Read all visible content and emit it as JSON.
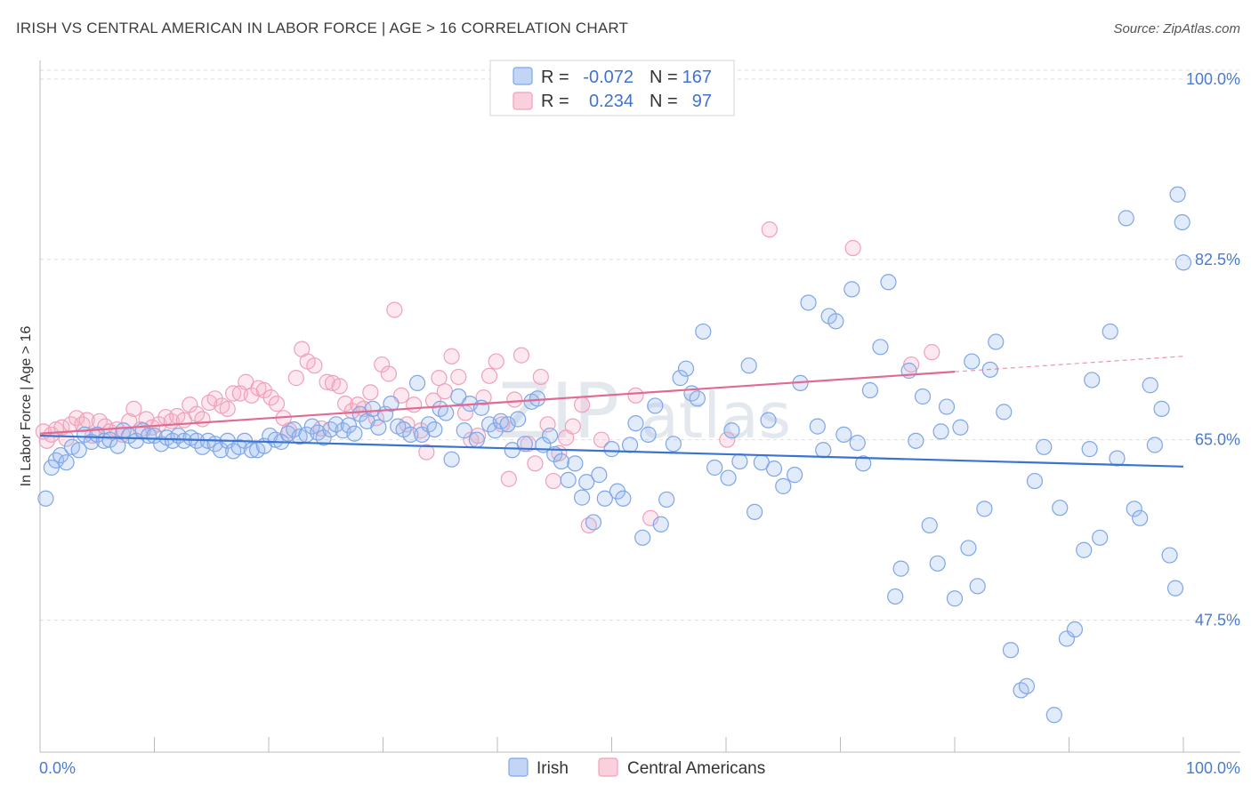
{
  "header": {
    "title": "IRISH VS CENTRAL AMERICAN IN LABOR FORCE | AGE > 16 CORRELATION CHART",
    "source": "Source: ZipAtlas.com"
  },
  "watermark": {
    "zip": "ZIP",
    "atlas": "atlas"
  },
  "legend": {
    "rows": [
      {
        "r_label": "R =",
        "r_value": "-0.072",
        "n_label": "N =",
        "n_value": "167",
        "color": "#7ea6e8"
      },
      {
        "r_label": "R =",
        "r_value": "0.234",
        "n_label": "N =",
        "n_value": "97",
        "color": "#f0a0ba"
      }
    ]
  },
  "bottom_legend": {
    "items": [
      {
        "label": "Irish",
        "color": "#7ea6e8"
      },
      {
        "label": "Central Americans",
        "color": "#f0a0ba"
      }
    ]
  },
  "chart_data": {
    "type": "scatter",
    "title": "IRISH VS CENTRAL AMERICAN IN LABOR FORCE | AGE > 16 CORRELATION CHART",
    "xlabel": "",
    "ylabel": "In Labor Force | Age > 16",
    "x_tick_labels": [
      "0.0%",
      "100.0%"
    ],
    "y_tick_labels": [
      "100.0%",
      "82.5%",
      "65.0%",
      "47.5%"
    ],
    "y_ticks": [
      100.0,
      82.5,
      65.0,
      47.5
    ],
    "xlim": [
      0,
      100
    ],
    "ylim": [
      34.7,
      101.8
    ],
    "grid": true,
    "legend_position": "top-center",
    "series": [
      {
        "name": "Irish",
        "color": "#7ea6e8",
        "line_color": "#3a74d0",
        "trend": {
          "x1": 0,
          "y1": 65.4,
          "x2": 100,
          "y2": 62.4
        },
        "points": [
          [
            0.5,
            59.3
          ],
          [
            1.0,
            62.3
          ],
          [
            1.4,
            63.0
          ],
          [
            1.8,
            63.5
          ],
          [
            2.3,
            62.8
          ],
          [
            2.8,
            64.3
          ],
          [
            3.4,
            64.0
          ],
          [
            3.9,
            65.5
          ],
          [
            4.5,
            64.8
          ],
          [
            5.0,
            65.5
          ],
          [
            5.6,
            64.9
          ],
          [
            6.1,
            65.0
          ],
          [
            6.8,
            64.4
          ],
          [
            7.3,
            65.9
          ],
          [
            7.8,
            65.4
          ],
          [
            8.4,
            64.9
          ],
          [
            9.0,
            65.9
          ],
          [
            9.5,
            65.4
          ],
          [
            10.0,
            65.4
          ],
          [
            10.6,
            64.6
          ],
          [
            11.1,
            65.2
          ],
          [
            11.6,
            64.9
          ],
          [
            12.1,
            65.4
          ],
          [
            12.6,
            64.9
          ],
          [
            13.2,
            65.2
          ],
          [
            13.7,
            64.9
          ],
          [
            14.2,
            64.3
          ],
          [
            14.7,
            64.9
          ],
          [
            15.3,
            64.6
          ],
          [
            15.8,
            64.0
          ],
          [
            16.4,
            64.9
          ],
          [
            16.9,
            63.9
          ],
          [
            17.4,
            64.3
          ],
          [
            17.9,
            64.9
          ],
          [
            18.5,
            64.0
          ],
          [
            19.0,
            64.0
          ],
          [
            19.6,
            64.4
          ],
          [
            20.1,
            65.4
          ],
          [
            20.6,
            65.0
          ],
          [
            21.1,
            64.8
          ],
          [
            21.7,
            65.6
          ],
          [
            22.2,
            66.0
          ],
          [
            22.7,
            65.3
          ],
          [
            23.3,
            65.5
          ],
          [
            23.8,
            66.3
          ],
          [
            24.3,
            65.7
          ],
          [
            24.8,
            65.2
          ],
          [
            25.4,
            66.0
          ],
          [
            25.9,
            66.5
          ],
          [
            26.5,
            65.9
          ],
          [
            27.0,
            66.4
          ],
          [
            27.5,
            65.6
          ],
          [
            28.0,
            67.5
          ],
          [
            28.6,
            66.8
          ],
          [
            29.1,
            68.0
          ],
          [
            29.6,
            66.2
          ],
          [
            30.2,
            67.5
          ],
          [
            30.7,
            68.5
          ],
          [
            31.3,
            66.3
          ],
          [
            31.8,
            66.0
          ],
          [
            32.4,
            65.5
          ],
          [
            33.0,
            70.5
          ],
          [
            33.4,
            65.5
          ],
          [
            34.0,
            66.5
          ],
          [
            34.5,
            66.0
          ],
          [
            35.0,
            68.0
          ],
          [
            35.5,
            67.6
          ],
          [
            36.0,
            63.1
          ],
          [
            36.6,
            69.2
          ],
          [
            37.1,
            65.9
          ],
          [
            37.6,
            68.5
          ],
          [
            38.2,
            65.0
          ],
          [
            38.6,
            68.1
          ],
          [
            39.3,
            66.5
          ],
          [
            39.8,
            65.9
          ],
          [
            40.3,
            66.8
          ],
          [
            40.9,
            66.5
          ],
          [
            41.3,
            64.0
          ],
          [
            41.8,
            67.0
          ],
          [
            42.4,
            64.6
          ],
          [
            43.0,
            68.7
          ],
          [
            43.5,
            69.0
          ],
          [
            44.0,
            64.5
          ],
          [
            44.6,
            65.4
          ],
          [
            45.0,
            63.6
          ],
          [
            45.6,
            62.9
          ],
          [
            46.2,
            61.1
          ],
          [
            46.8,
            62.7
          ],
          [
            47.4,
            59.4
          ],
          [
            47.8,
            60.9
          ],
          [
            48.4,
            57.0
          ],
          [
            48.9,
            61.6
          ],
          [
            49.4,
            59.3
          ],
          [
            50.0,
            64.1
          ],
          [
            50.5,
            60.0
          ],
          [
            51.0,
            59.3
          ],
          [
            51.6,
            64.5
          ],
          [
            52.1,
            66.6
          ],
          [
            52.7,
            55.5
          ],
          [
            53.2,
            65.5
          ],
          [
            53.8,
            68.3
          ],
          [
            54.3,
            56.8
          ],
          [
            54.8,
            59.2
          ],
          [
            55.4,
            64.6
          ],
          [
            56.0,
            71.0
          ],
          [
            56.5,
            71.9
          ],
          [
            57.0,
            69.5
          ],
          [
            57.5,
            69.0
          ],
          [
            58.0,
            75.5
          ],
          [
            59.0,
            62.3
          ],
          [
            60.2,
            61.3
          ],
          [
            60.5,
            65.9
          ],
          [
            61.2,
            62.9
          ],
          [
            62.0,
            72.2
          ],
          [
            62.5,
            58.0
          ],
          [
            63.1,
            62.8
          ],
          [
            63.7,
            66.9
          ],
          [
            64.2,
            62.2
          ],
          [
            65.0,
            60.5
          ],
          [
            66.0,
            61.6
          ],
          [
            66.5,
            70.5
          ],
          [
            67.2,
            78.3
          ],
          [
            68.0,
            66.3
          ],
          [
            68.5,
            64.0
          ],
          [
            69.0,
            77.0
          ],
          [
            69.6,
            76.5
          ],
          [
            70.3,
            65.5
          ],
          [
            71.0,
            79.6
          ],
          [
            71.5,
            64.7
          ],
          [
            72.0,
            62.7
          ],
          [
            72.6,
            69.8
          ],
          [
            73.5,
            74.0
          ],
          [
            74.2,
            80.3
          ],
          [
            74.8,
            49.8
          ],
          [
            75.3,
            52.5
          ],
          [
            76.0,
            71.7
          ],
          [
            76.6,
            64.9
          ],
          [
            77.2,
            69.2
          ],
          [
            77.8,
            56.7
          ],
          [
            78.5,
            53.0
          ],
          [
            78.8,
            65.8
          ],
          [
            79.3,
            68.2
          ],
          [
            80.0,
            49.6
          ],
          [
            80.5,
            66.2
          ],
          [
            81.2,
            54.5
          ],
          [
            81.5,
            72.6
          ],
          [
            82.0,
            50.8
          ],
          [
            82.6,
            58.3
          ],
          [
            83.1,
            71.8
          ],
          [
            83.6,
            74.5
          ],
          [
            84.3,
            67.7
          ],
          [
            84.9,
            44.6
          ],
          [
            85.8,
            40.7
          ],
          [
            86.3,
            41.1
          ],
          [
            87.0,
            61.0
          ],
          [
            87.8,
            64.3
          ],
          [
            88.7,
            38.3
          ],
          [
            89.2,
            58.4
          ],
          [
            89.8,
            45.7
          ],
          [
            90.5,
            46.6
          ],
          [
            91.3,
            54.3
          ],
          [
            91.8,
            64.1
          ],
          [
            92.0,
            70.8
          ],
          [
            92.7,
            55.5
          ],
          [
            93.6,
            75.5
          ],
          [
            94.2,
            63.2
          ],
          [
            95.0,
            86.5
          ],
          [
            95.7,
            58.3
          ],
          [
            96.2,
            57.4
          ],
          [
            97.1,
            70.3
          ],
          [
            97.5,
            64.5
          ],
          [
            98.1,
            68.0
          ],
          [
            98.8,
            53.8
          ],
          [
            99.3,
            50.6
          ],
          [
            99.5,
            88.8
          ],
          [
            99.9,
            86.1
          ],
          [
            100.0,
            82.2
          ]
        ]
      },
      {
        "name": "Central Americans",
        "color": "#f0a0ba",
        "line_color": "#e06a92",
        "trend": {
          "x1": 0,
          "y1": 65.6,
          "x2": 80,
          "y2": 71.6
        },
        "points": [
          [
            0.3,
            65.8
          ],
          [
            0.6,
            64.9
          ],
          [
            1.0,
            65.5
          ],
          [
            1.4,
            66.0
          ],
          [
            1.9,
            66.2
          ],
          [
            2.3,
            65.1
          ],
          [
            2.7,
            66.5
          ],
          [
            3.2,
            67.1
          ],
          [
            3.7,
            66.5
          ],
          [
            4.1,
            66.9
          ],
          [
            4.6,
            65.4
          ],
          [
            5.2,
            66.8
          ],
          [
            5.7,
            66.3
          ],
          [
            6.1,
            65.8
          ],
          [
            6.7,
            66.0
          ],
          [
            7.2,
            65.5
          ],
          [
            7.8,
            66.8
          ],
          [
            8.2,
            68.0
          ],
          [
            8.8,
            66.0
          ],
          [
            9.3,
            67.0
          ],
          [
            9.8,
            66.2
          ],
          [
            10.4,
            66.5
          ],
          [
            11.0,
            67.2
          ],
          [
            11.5,
            66.8
          ],
          [
            12.0,
            67.3
          ],
          [
            12.6,
            66.9
          ],
          [
            13.1,
            68.4
          ],
          [
            13.7,
            67.5
          ],
          [
            14.2,
            67.0
          ],
          [
            14.8,
            68.6
          ],
          [
            15.3,
            69.0
          ],
          [
            15.9,
            68.3
          ],
          [
            16.4,
            68.0
          ],
          [
            16.9,
            69.5
          ],
          [
            17.5,
            69.5
          ],
          [
            18.0,
            70.6
          ],
          [
            18.5,
            69.3
          ],
          [
            19.1,
            70.0
          ],
          [
            19.6,
            69.8
          ],
          [
            20.2,
            69.1
          ],
          [
            20.7,
            68.5
          ],
          [
            21.3,
            67.1
          ],
          [
            21.8,
            65.9
          ],
          [
            22.4,
            71.0
          ],
          [
            22.9,
            73.8
          ],
          [
            23.4,
            72.6
          ],
          [
            24.0,
            72.2
          ],
          [
            24.6,
            66.1
          ],
          [
            25.1,
            70.6
          ],
          [
            25.6,
            70.5
          ],
          [
            26.2,
            70.2
          ],
          [
            26.7,
            68.5
          ],
          [
            27.3,
            67.8
          ],
          [
            27.8,
            68.4
          ],
          [
            28.3,
            68.0
          ],
          [
            28.9,
            69.6
          ],
          [
            29.4,
            67.1
          ],
          [
            29.9,
            72.3
          ],
          [
            30.5,
            71.4
          ],
          [
            31.0,
            77.6
          ],
          [
            31.6,
            69.3
          ],
          [
            32.1,
            66.5
          ],
          [
            32.7,
            68.4
          ],
          [
            33.3,
            65.9
          ],
          [
            33.8,
            63.8
          ],
          [
            34.4,
            68.8
          ],
          [
            34.9,
            71.0
          ],
          [
            35.4,
            69.7
          ],
          [
            36.0,
            73.1
          ],
          [
            36.6,
            71.1
          ],
          [
            37.2,
            67.6
          ],
          [
            37.7,
            65.0
          ],
          [
            38.3,
            65.4
          ],
          [
            38.8,
            69.1
          ],
          [
            39.3,
            71.2
          ],
          [
            39.9,
            72.6
          ],
          [
            40.4,
            66.5
          ],
          [
            41.0,
            61.2
          ],
          [
            41.5,
            68.9
          ],
          [
            42.1,
            73.2
          ],
          [
            42.7,
            64.6
          ],
          [
            43.3,
            62.7
          ],
          [
            43.8,
            71.1
          ],
          [
            44.4,
            66.5
          ],
          [
            44.9,
            61.0
          ],
          [
            45.4,
            63.7
          ],
          [
            46.0,
            65.2
          ],
          [
            46.6,
            66.3
          ],
          [
            47.4,
            68.4
          ],
          [
            48.0,
            56.7
          ],
          [
            49.1,
            65.0
          ],
          [
            52.1,
            69.3
          ],
          [
            53.4,
            57.4
          ],
          [
            60.1,
            65.0
          ],
          [
            63.8,
            85.4
          ],
          [
            71.1,
            83.6
          ],
          [
            76.2,
            72.3
          ],
          [
            78.0,
            73.5
          ]
        ]
      }
    ]
  }
}
